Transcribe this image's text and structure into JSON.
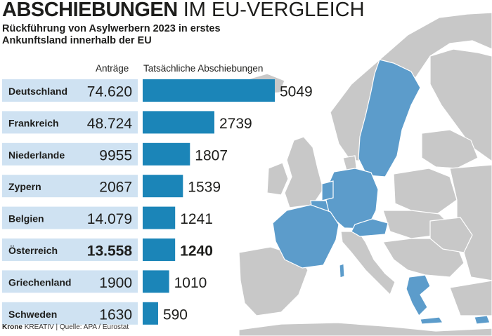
{
  "title": {
    "bold": "ABSCHIEBUNGEN",
    "light": "IM EU-VERGLEICH"
  },
  "subtitle": "Rückführung von Asylwerbern 2023 in erstes Ankunftsland innerhalb der EU",
  "footer": {
    "brand": "Krone",
    "rest": "KREATIV | Quelle: APA / Eurostat"
  },
  "colors": {
    "bar": "#1b85b8",
    "row_bg": "#cfe2f2",
    "map_land": "#c8c8c8",
    "map_highlight": "#5c9ccb",
    "text": "#1d1d1b"
  },
  "chart_data": {
    "type": "bar",
    "col_applications": "Anträge",
    "col_deportations": "Tatsächliche Abschiebungen",
    "categories": [
      "Deutschland",
      "Frankreich",
      "Niederlande",
      "Zypern",
      "Belgien",
      "Österreich",
      "Griechenland",
      "Schweden"
    ],
    "applications_label": [
      "74.620",
      "48.724",
      "9955",
      "2067",
      "14.079",
      "13.558",
      "1900",
      "1630"
    ],
    "applications": [
      74620,
      48724,
      9955,
      2067,
      14079,
      13558,
      1900,
      1630
    ],
    "deportations_label": [
      "5049",
      "2739",
      "1807",
      "1539",
      "1241",
      "1240",
      "1010",
      "590"
    ],
    "deportations": [
      5049,
      2739,
      1807,
      1539,
      1241,
      1240,
      1010,
      590
    ],
    "highlight_category": "Österreich"
  }
}
